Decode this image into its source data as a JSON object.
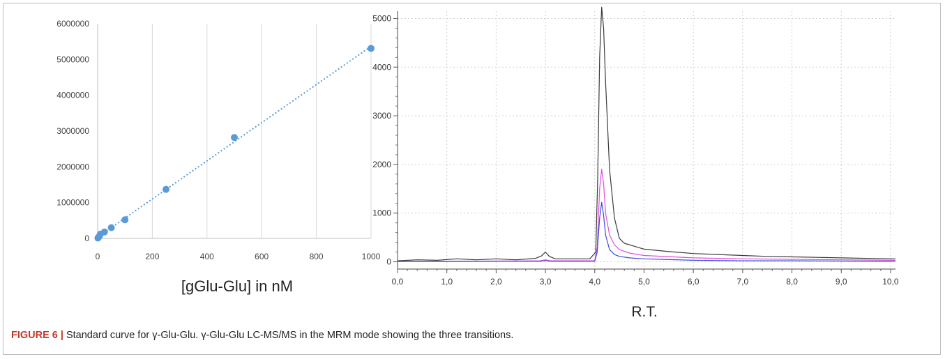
{
  "chart_data": [
    {
      "type": "scatter",
      "xlabel": "[gGlu-Glu] in nM",
      "xlim": [
        0,
        1000
      ],
      "ylim": [
        0,
        6000000
      ],
      "xticks": [
        "0",
        "200",
        "400",
        "600",
        "800",
        "1000"
      ],
      "yticks": [
        "0",
        "1000000",
        "2000000",
        "3000000",
        "4000000",
        "5000000",
        "6000000"
      ],
      "grid": "vertical",
      "trendline": "linear, dotted",
      "colors": {
        "points": "#5b9bd5",
        "trendline": "#5b9bd5"
      },
      "series": [
        {
          "x": [
            1,
            3,
            6,
            10,
            25,
            50,
            100,
            250,
            500,
            1000
          ],
          "values": [
            10000,
            30000,
            60000,
            120000,
            180000,
            300000,
            520000,
            1370000,
            2820000,
            5310000
          ]
        }
      ]
    },
    {
      "type": "line",
      "xlabel": "R.T.",
      "xlim": [
        0,
        10.1
      ],
      "ylim": [
        -150,
        5150
      ],
      "xticks": [
        "0,0",
        "1,0",
        "2,0",
        "3,0",
        "4,0",
        "5,0",
        "6,0",
        "7,0",
        "8,0",
        "9,0",
        "10,0"
      ],
      "yticks": [
        "0",
        "1000",
        "2000",
        "3000",
        "4000",
        "5000"
      ],
      "grid": "dotted, both",
      "colors": {
        "black_trace": "#3a3a3a",
        "magenta_trace": "#e14ce0",
        "blue_trace": "#3a49d8"
      },
      "series": [
        {
          "color": "#3a3a3a",
          "x": [
            0,
            0.4,
            0.8,
            1.2,
            1.6,
            2.0,
            2.4,
            2.8,
            2.92,
            3.0,
            3.08,
            3.2,
            3.6,
            3.9,
            4.02,
            4.06,
            4.1,
            4.14,
            4.18,
            4.22,
            4.3,
            4.4,
            4.5,
            4.6,
            4.8,
            5.0,
            5.5,
            6.0,
            6.5,
            7.0,
            7.5,
            8.0,
            8.5,
            9.0,
            9.5,
            10.1
          ],
          "values": [
            20,
            40,
            30,
            60,
            40,
            60,
            40,
            70,
            120,
            200,
            110,
            60,
            60,
            60,
            200,
            1700,
            4200,
            5230,
            4800,
            3700,
            1900,
            900,
            480,
            380,
            320,
            260,
            210,
            170,
            150,
            130,
            110,
            100,
            90,
            80,
            70,
            60
          ]
        },
        {
          "color": "#e14ce0",
          "x": [
            0,
            1,
            2,
            2.9,
            3.0,
            3.1,
            4.0,
            4.05,
            4.1,
            4.14,
            4.18,
            4.22,
            4.3,
            4.4,
            4.5,
            4.7,
            5.0,
            6.0,
            6.5,
            7.0,
            8.0,
            9.0,
            10.1
          ],
          "values": [
            10,
            10,
            15,
            20,
            40,
            20,
            20,
            300,
            1500,
            1900,
            1600,
            1000,
            550,
            350,
            250,
            180,
            130,
            80,
            70,
            60,
            50,
            40,
            30
          ]
        },
        {
          "color": "#3a49d8",
          "x": [
            0,
            1,
            2,
            2.9,
            3.0,
            3.1,
            4.0,
            4.05,
            4.1,
            4.14,
            4.18,
            4.22,
            4.3,
            4.4,
            4.5,
            4.7,
            5.0,
            6.0,
            7.0,
            8.0,
            9.0,
            10.1
          ],
          "values": [
            5,
            5,
            10,
            10,
            25,
            10,
            10,
            200,
            900,
            1220,
            950,
            550,
            250,
            150,
            110,
            80,
            60,
            30,
            20,
            20,
            15,
            10
          ]
        }
      ]
    }
  ],
  "caption": {
    "label": "FIGURE 6",
    "separator": "|",
    "text": "Standard curve for γ-Glu-Glu. γ-Glu-Glu LC-MS/MS in the MRM mode showing the three transitions."
  }
}
